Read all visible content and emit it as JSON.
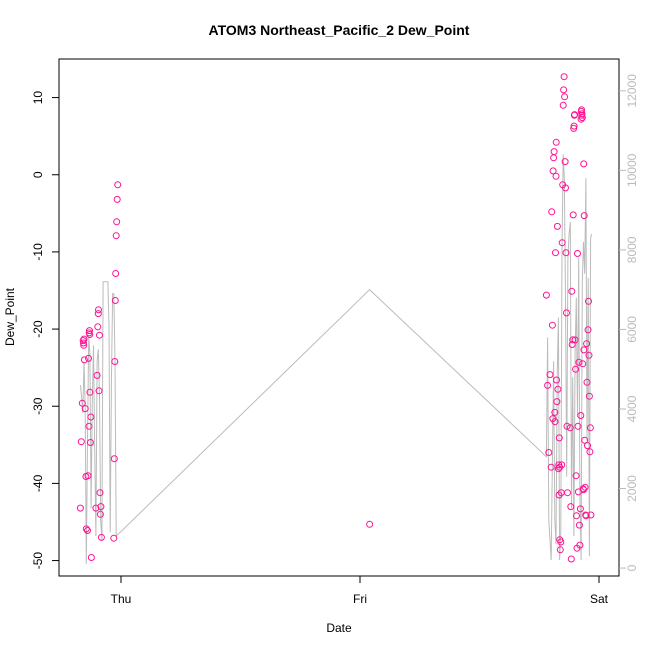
{
  "chart_data": {
    "type": "scatter",
    "title": "ATOM3 Northeast_Pacific_2 Dew_Point",
    "xlabel": "Date",
    "ylabel": "Dew_Point",
    "x_ticks": [
      "Thu",
      "Fri",
      "Sat"
    ],
    "xlim": [
      -0.17,
      2.04
    ],
    "ylim": [
      -52,
      15
    ],
    "y_ticks": [
      -50,
      -40,
      -30,
      -20,
      -10,
      0,
      10
    ],
    "y2lim": [
      -200,
      12800
    ],
    "y2_ticks": [
      0,
      2000,
      4000,
      6000,
      8000,
      10000,
      12000
    ],
    "grid": false,
    "series": [
      {
        "marker": "open-circle",
        "color": "#ff1493",
        "x_unit": "days since Thursday 00:00",
        "points": [
          [
            -0.17,
            -43.2
          ],
          [
            -0.166,
            -34.6
          ],
          [
            -0.162,
            -29.6
          ],
          [
            -0.158,
            -21.5
          ],
          [
            -0.157,
            -21.8
          ],
          [
            -0.156,
            -22.1
          ],
          [
            -0.155,
            -21.3
          ],
          [
            -0.153,
            -24.0
          ],
          [
            -0.15,
            -30.3
          ],
          [
            -0.147,
            -39.1
          ],
          [
            -0.145,
            -45.9
          ],
          [
            -0.14,
            -46.1
          ],
          [
            -0.138,
            -39.0
          ],
          [
            -0.136,
            -23.8
          ],
          [
            -0.134,
            -32.6
          ],
          [
            -0.133,
            -20.5
          ],
          [
            -0.132,
            -20.2
          ],
          [
            -0.131,
            -20.7
          ],
          [
            -0.13,
            -28.2
          ],
          [
            -0.128,
            -34.7
          ],
          [
            -0.126,
            -31.4
          ],
          [
            -0.124,
            -49.6
          ],
          [
            -0.105,
            -43.2
          ],
          [
            -0.1,
            -26.0
          ],
          [
            -0.097,
            -19.7
          ],
          [
            -0.095,
            -18.0
          ],
          [
            -0.094,
            -17.5
          ],
          [
            -0.092,
            -28.0
          ],
          [
            -0.09,
            -20.8
          ],
          [
            -0.088,
            -41.2
          ],
          [
            -0.086,
            -44.0
          ],
          [
            -0.084,
            -43.0
          ],
          [
            -0.082,
            -47.0
          ],
          [
            -0.03,
            -47.1
          ],
          [
            -0.028,
            -36.8
          ],
          [
            -0.026,
            -24.2
          ],
          [
            -0.024,
            -16.3
          ],
          [
            -0.022,
            -12.8
          ],
          [
            -0.02,
            -7.9
          ],
          [
            -0.018,
            -6.1
          ],
          [
            -0.016,
            -3.2
          ],
          [
            -0.014,
            -1.3
          ],
          [
            1.04,
            -45.3
          ],
          [
            1.78,
            -15.6
          ],
          [
            1.785,
            -27.3
          ],
          [
            1.79,
            -36.0
          ],
          [
            1.795,
            -25.9
          ],
          [
            1.8,
            -37.9
          ],
          [
            1.802,
            -4.8
          ],
          [
            1.805,
            -19.5
          ],
          [
            1.807,
            -31.6
          ],
          [
            1.808,
            0.5
          ],
          [
            1.81,
            2.2
          ],
          [
            1.812,
            3.0
          ],
          [
            1.815,
            -30.8
          ],
          [
            1.816,
            -32.0
          ],
          [
            1.818,
            -10.1
          ],
          [
            1.82,
            -0.2
          ],
          [
            1.821,
            4.2
          ],
          [
            1.822,
            -26.6
          ],
          [
            1.824,
            -29.4
          ],
          [
            1.826,
            -6.7
          ],
          [
            1.828,
            -27.8
          ],
          [
            1.83,
            -38.1
          ],
          [
            1.832,
            -37.6
          ],
          [
            1.833,
            -41.5
          ],
          [
            1.834,
            -34.1
          ],
          [
            1.835,
            -37.9
          ],
          [
            1.836,
            -47.3
          ],
          [
            1.838,
            -48.6
          ],
          [
            1.84,
            -47.6
          ],
          [
            1.842,
            -41.2
          ],
          [
            1.844,
            -37.6
          ],
          [
            1.846,
            -8.8
          ],
          [
            1.848,
            -1.3
          ],
          [
            1.85,
            9.0
          ],
          [
            1.852,
            11.0
          ],
          [
            1.854,
            12.7
          ],
          [
            1.856,
            10.1
          ],
          [
            1.858,
            1.7
          ],
          [
            1.86,
            -1.7
          ],
          [
            1.862,
            -10.1
          ],
          [
            1.864,
            -17.9
          ],
          [
            1.866,
            -32.6
          ],
          [
            1.868,
            -41.2
          ],
          [
            1.88,
            -32.8
          ],
          [
            1.882,
            -43.0
          ],
          [
            1.884,
            -49.8
          ],
          [
            1.886,
            -15.1
          ],
          [
            1.888,
            -22.0
          ],
          [
            1.89,
            -21.4
          ],
          [
            1.892,
            -5.2
          ],
          [
            1.894,
            6.0
          ],
          [
            1.896,
            6.3
          ],
          [
            1.897,
            7.7
          ],
          [
            1.898,
            7.8
          ],
          [
            1.9,
            -21.4
          ],
          [
            1.902,
            -25.2
          ],
          [
            1.904,
            -39.0
          ],
          [
            1.906,
            -44.2
          ],
          [
            1.908,
            -48.4
          ],
          [
            1.91,
            -10.2
          ],
          [
            1.912,
            -32.6
          ],
          [
            1.914,
            -41.1
          ],
          [
            1.916,
            -24.3
          ],
          [
            1.918,
            -45.4
          ],
          [
            1.92,
            -48.0
          ],
          [
            1.922,
            -43.3
          ],
          [
            1.924,
            -31.2
          ],
          [
            1.925,
            7.2
          ],
          [
            1.926,
            8.2
          ],
          [
            1.927,
            8.4
          ],
          [
            1.928,
            7.7
          ],
          [
            1.929,
            7.9
          ],
          [
            1.93,
            7.4
          ],
          [
            1.932,
            -24.5
          ],
          [
            1.934,
            -40.7
          ],
          [
            1.935,
            -40.8
          ],
          [
            1.936,
            1.4
          ],
          [
            1.937,
            -22.7
          ],
          [
            1.938,
            -5.3
          ],
          [
            1.94,
            -34.4
          ],
          [
            1.942,
            -40.5
          ],
          [
            1.944,
            -44.1
          ],
          [
            1.946,
            -44.2
          ],
          [
            1.948,
            -21.9
          ],
          [
            1.95,
            -26.9
          ],
          [
            1.952,
            -35.1
          ],
          [
            1.954,
            -20.1
          ],
          [
            1.956,
            -16.4
          ],
          [
            1.958,
            -23.4
          ],
          [
            1.96,
            -28.7
          ],
          [
            1.962,
            -35.9
          ],
          [
            1.964,
            -32.8
          ],
          [
            1.966,
            -44.1
          ]
        ]
      },
      {
        "marker": "line",
        "color": "#bbbbbb",
        "axis": "right",
        "x_unit": "days since Thursday 00:00",
        "points": [
          [
            -0.17,
            4600
          ],
          [
            -0.165,
            4300
          ],
          [
            -0.16,
            3900
          ],
          [
            -0.155,
            5200
          ],
          [
            -0.15,
            4000
          ],
          [
            -0.145,
            100
          ],
          [
            -0.14,
            3200
          ],
          [
            -0.135,
            5800
          ],
          [
            -0.13,
            5400
          ],
          [
            -0.125,
            1500
          ],
          [
            -0.12,
            4200
          ],
          [
            -0.115,
            5600
          ],
          [
            -0.11,
            3000
          ],
          [
            -0.105,
            800
          ],
          [
            -0.1,
            5200
          ],
          [
            -0.095,
            5500
          ],
          [
            -0.09,
            4300
          ],
          [
            -0.085,
            1200
          ],
          [
            -0.08,
            700
          ],
          [
            -0.075,
            7200
          ],
          [
            -0.065,
            7200
          ],
          [
            -0.055,
            7200
          ],
          [
            -0.05,
            6100
          ],
          [
            -0.045,
            900
          ],
          [
            -0.04,
            4600
          ],
          [
            -0.035,
            6900
          ],
          [
            -0.03,
            6900
          ],
          [
            -0.025,
            5200
          ],
          [
            -0.02,
            800
          ],
          [
            1.04,
            7000
          ],
          [
            1.78,
            2800
          ],
          [
            1.785,
            5800
          ],
          [
            1.79,
            1200
          ],
          [
            1.8,
            200
          ],
          [
            1.81,
            5200
          ],
          [
            1.815,
            1200
          ],
          [
            1.82,
            600
          ],
          [
            1.825,
            4800
          ],
          [
            1.83,
            6300
          ],
          [
            1.835,
            200
          ],
          [
            1.84,
            900
          ],
          [
            1.845,
            8000
          ],
          [
            1.85,
            10400
          ],
          [
            1.855,
            9800
          ],
          [
            1.86,
            6800
          ],
          [
            1.865,
            2300
          ],
          [
            1.87,
            7800
          ],
          [
            1.875,
            8400
          ],
          [
            1.88,
            8700
          ],
          [
            1.885,
            1500
          ],
          [
            1.89,
            4800
          ],
          [
            1.895,
            800
          ],
          [
            1.9,
            5400
          ],
          [
            1.905,
            6800
          ],
          [
            1.91,
            3800
          ],
          [
            1.915,
            7800
          ],
          [
            1.92,
            1900
          ],
          [
            1.925,
            200
          ],
          [
            1.93,
            7200
          ],
          [
            1.935,
            8200
          ],
          [
            1.94,
            7400
          ],
          [
            1.945,
            9800
          ],
          [
            1.95,
            3200
          ],
          [
            1.955,
            7300
          ],
          [
            1.96,
            300
          ],
          [
            1.965,
            8300
          ],
          [
            1.97,
            8400
          ]
        ]
      }
    ]
  }
}
